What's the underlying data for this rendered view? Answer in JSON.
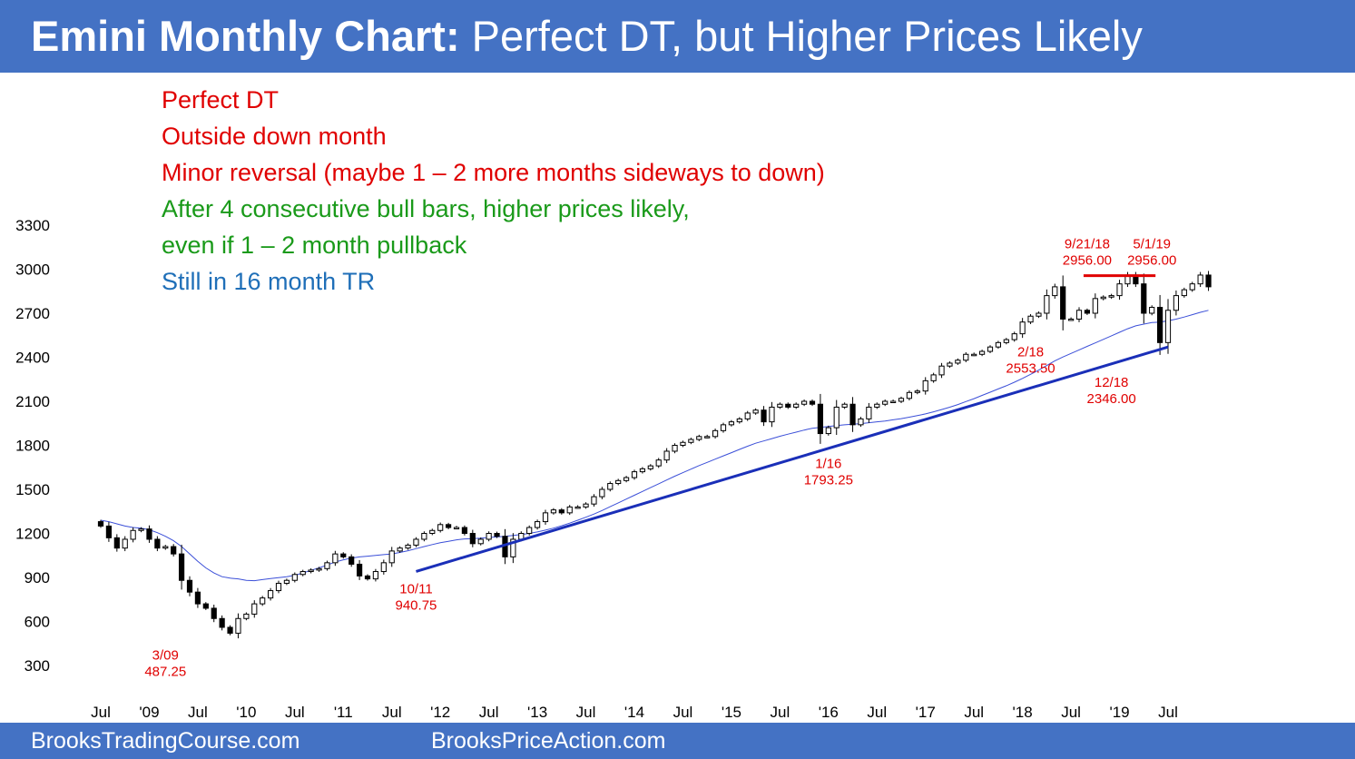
{
  "header": {
    "title_bold": "Emini Monthly Chart:",
    "title_rest": "Perfect DT, but Higher Prices Likely",
    "bg_color": "#4472c4"
  },
  "notes": [
    {
      "text": "Perfect DT",
      "color": "#e00000"
    },
    {
      "text": "Outside down month",
      "color": "#e00000"
    },
    {
      "text": "Minor reversal (maybe 1 – 2 more months sideways to down)",
      "color": "#e00000"
    },
    {
      "text": "After 4 consecutive bull bars, higher prices likely,",
      "color": "#1a9a1a"
    },
    {
      "text": "even if 1 – 2 month pullback",
      "color": "#1a9a1a"
    },
    {
      "text": "Still in 16 month TR",
      "color": "#1f6fb8"
    }
  ],
  "footer": {
    "left_link": "BrooksTradingCourse.com",
    "right_link": "BrooksPriceAction.com"
  },
  "chart_data": {
    "type": "candlestick",
    "title": "",
    "xlabel": "",
    "ylabel": "",
    "ylim": [
      150,
      3400
    ],
    "yticks": [
      300,
      600,
      900,
      1200,
      1500,
      1800,
      2100,
      2400,
      2700,
      3000,
      3300
    ],
    "ytick_labels": [
      "300",
      "600",
      "900",
      "1200",
      "1500",
      "1800",
      "2100",
      "2400",
      "2700",
      "3000",
      "3300"
    ],
    "x_range": [
      "2008-07",
      "2019-07"
    ],
    "xtick_labels": [
      {
        "date": "2008-07",
        "label": "Jul"
      },
      {
        "date": "2009-01",
        "label": "'09"
      },
      {
        "date": "2009-07",
        "label": "Jul"
      },
      {
        "date": "2010-01",
        "label": "'10"
      },
      {
        "date": "2010-07",
        "label": "Jul"
      },
      {
        "date": "2011-01",
        "label": "'11"
      },
      {
        "date": "2011-07",
        "label": "Jul"
      },
      {
        "date": "2012-01",
        "label": "'12"
      },
      {
        "date": "2012-07",
        "label": "Jul"
      },
      {
        "date": "2013-01",
        "label": "'13"
      },
      {
        "date": "2013-07",
        "label": "Jul"
      },
      {
        "date": "2014-01",
        "label": "'14"
      },
      {
        "date": "2014-07",
        "label": "Jul"
      },
      {
        "date": "2015-01",
        "label": "'15"
      },
      {
        "date": "2015-07",
        "label": "Jul"
      },
      {
        "date": "2016-01",
        "label": "'16"
      },
      {
        "date": "2016-07",
        "label": "Jul"
      },
      {
        "date": "2017-01",
        "label": "'17"
      },
      {
        "date": "2017-07",
        "label": "Jul"
      },
      {
        "date": "2018-01",
        "label": "'18"
      },
      {
        "date": "2018-07",
        "label": "Jul"
      },
      {
        "date": "2019-01",
        "label": "'19"
      },
      {
        "date": "2019-07",
        "label": "Jul"
      }
    ],
    "closes": [
      1250,
      1170,
      1100,
      1160,
      1220,
      1230,
      1160,
      1100,
      1110,
      1060,
      880,
      800,
      720,
      690,
      620,
      560,
      520,
      620,
      650,
      720,
      760,
      810,
      860,
      880,
      920,
      940,
      950,
      960,
      1000,
      1060,
      1040,
      990,
      910,
      890,
      940,
      1000,
      1080,
      1100,
      1120,
      1160,
      1200,
      1220,
      1260,
      1240,
      1240,
      1200,
      1130,
      1160,
      1200,
      1180,
      1040,
      1160,
      1200,
      1240,
      1280,
      1340,
      1360,
      1340,
      1380,
      1380,
      1400,
      1450,
      1500,
      1540,
      1560,
      1580,
      1620,
      1640,
      1660,
      1700,
      1760,
      1800,
      1820,
      1840,
      1860,
      1860,
      1900,
      1940,
      1960,
      1980,
      2020,
      2040,
      1960,
      2060,
      2080,
      2060,
      2080,
      2100,
      2080,
      1880,
      1920,
      2060,
      2080,
      1940,
      1980,
      2060,
      2080,
      2100,
      2100,
      2120,
      2160,
      2170,
      2240,
      2280,
      2340,
      2360,
      2380,
      2420,
      2420,
      2440,
      2470,
      2500,
      2520,
      2560,
      2640,
      2680,
      2700,
      2820,
      2880,
      2660,
      2660,
      2720,
      2700,
      2800,
      2810,
      2820,
      2900,
      2960,
      2900,
      2700,
      2740,
      2500,
      2720,
      2820,
      2860,
      2900,
      2960,
      2880
    ],
    "sma_20": [
      1290,
      1280,
      1265,
      1250,
      1240,
      1235,
      1225,
      1205,
      1180,
      1150,
      1110,
      1060,
      1010,
      965,
      930,
      905,
      895,
      890,
      880,
      878,
      885,
      892,
      898,
      905,
      915,
      930,
      948,
      965,
      985,
      1005,
      1020,
      1032,
      1040,
      1045,
      1050,
      1055,
      1060,
      1070,
      1082,
      1096,
      1110,
      1124,
      1136,
      1146,
      1156,
      1162,
      1165,
      1168,
      1172,
      1176,
      1180,
      1186,
      1192,
      1200,
      1210,
      1222,
      1236,
      1252,
      1270,
      1290,
      1310,
      1332,
      1356,
      1382,
      1408,
      1434,
      1460,
      1486,
      1512,
      1538,
      1564,
      1590,
      1614,
      1638,
      1662,
      1684,
      1706,
      1728,
      1750,
      1772,
      1794,
      1814,
      1830,
      1846,
      1862,
      1876,
      1890,
      1904,
      1916,
      1922,
      1928,
      1934,
      1940,
      1944,
      1948,
      1954,
      1960,
      1966,
      1974,
      1982,
      1992,
      2002,
      2014,
      2028,
      2044,
      2060,
      2078,
      2098,
      2118,
      2140,
      2162,
      2184,
      2206,
      2230,
      2256,
      2284,
      2312,
      2344,
      2376,
      2402,
      2426,
      2450,
      2474,
      2498,
      2522,
      2546,
      2570,
      2594,
      2614,
      2626,
      2636,
      2640,
      2648,
      2660,
      2674,
      2690,
      2706,
      2720
    ],
    "trendline": {
      "from": {
        "date": "2011-10",
        "value": 940.75
      },
      "to": {
        "date": "2019-07",
        "value": 2470
      }
    },
    "double_top_line": {
      "from": {
        "date": "2018-09",
        "value": 2956.0
      },
      "to": {
        "date": "2019-05",
        "value": 2956.0
      }
    },
    "annotations": [
      {
        "date": "2009-03",
        "lines": [
          "3/09",
          "487.25"
        ],
        "side": "below",
        "anchor": 487.25
      },
      {
        "date": "2011-10",
        "lines": [
          "10/11",
          "940.75"
        ],
        "side": "below",
        "anchor": 940.75
      },
      {
        "date": "2016-01",
        "lines": [
          "1/16",
          "1793.25"
        ],
        "side": "below",
        "anchor": 1793.25
      },
      {
        "date": "2018-02",
        "lines": [
          "2/18",
          "2553.50"
        ],
        "side": "below",
        "anchor": 2553.5
      },
      {
        "date": "2018-12",
        "lines": [
          "12/18",
          "2346.00"
        ],
        "side": "below",
        "anchor": 2346.0
      },
      {
        "date": "2018-09",
        "lines": [
          "9/21/18",
          "2956.00"
        ],
        "side": "above",
        "anchor": 2956.0
      },
      {
        "date": "2019-05",
        "lines": [
          "5/1/19",
          "2956.00"
        ],
        "side": "above",
        "anchor": 2956.0
      }
    ],
    "colors": {
      "sma": "#3b4fd8",
      "trendline": "#1a2fb8",
      "double_top": "#e00000",
      "annotation": "#e00000",
      "bear": "#000000",
      "bull": "#ffffff"
    },
    "grid": false,
    "legend": "none"
  }
}
